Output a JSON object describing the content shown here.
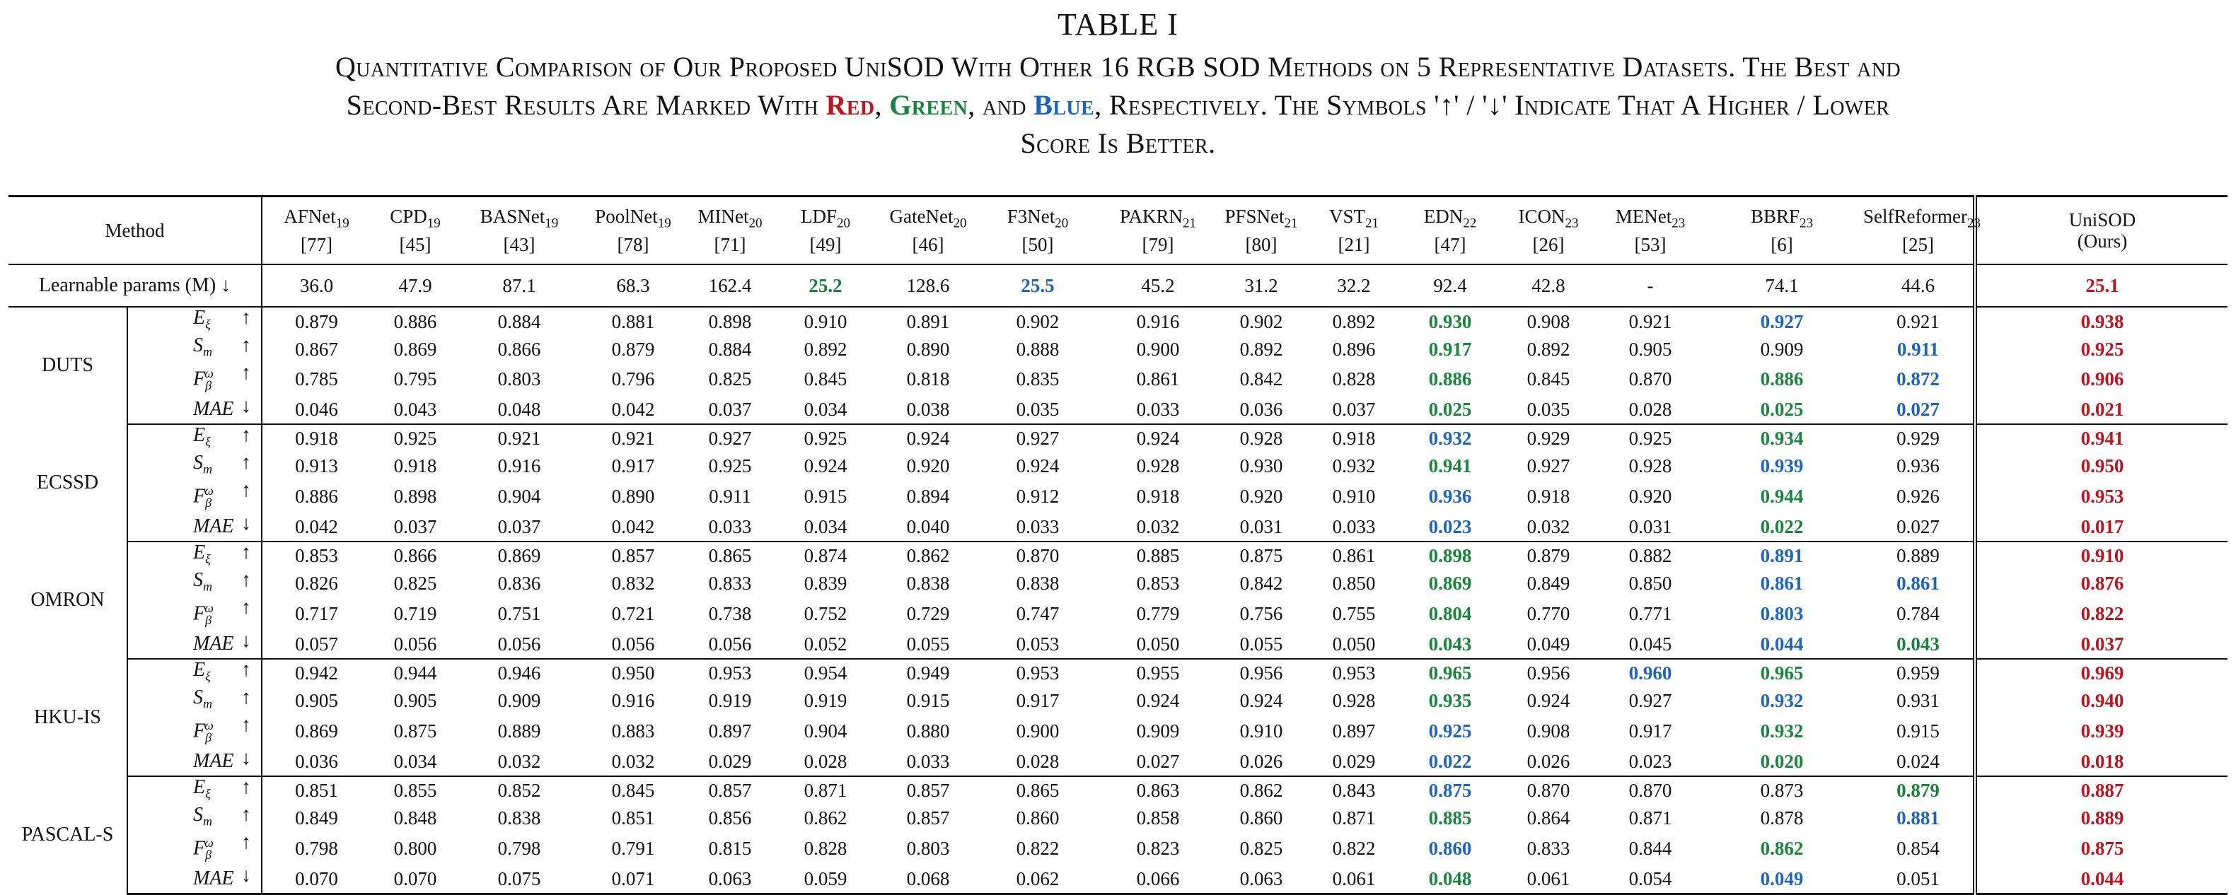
{
  "caption": {
    "label": "TABLE I",
    "line1": "Quantitative Comparison of Our Proposed UniSOD With Other 16 RGB SOD Methods on 5 Representative Datasets. The Best and",
    "line2_pre": "Second-Best Results Are Marked With ",
    "red_word": "Red",
    "comma1": ", ",
    "green_word": "Green",
    "and_word": ", and ",
    "blue_word": "Blue",
    "line2_post": ", Respectively. The Symbols '↑' / '↓' Indicate That A Higher / Lower",
    "line3": "Score Is Better."
  },
  "colors": {
    "red": "#c0141e",
    "green": "#18863a",
    "blue": "#1b64c0"
  },
  "header": {
    "method_label": "Method",
    "methods": [
      {
        "name": "AFNet",
        "year": "19",
        "ref": "[77]"
      },
      {
        "name": "CPD",
        "year": "19",
        "ref": "[45]"
      },
      {
        "name": "BASNet",
        "year": "19",
        "ref": "[43]"
      },
      {
        "name": "PoolNet",
        "year": "19",
        "ref": "[78]"
      },
      {
        "name": "MINet",
        "year": "20",
        "ref": "[71]"
      },
      {
        "name": "LDF",
        "year": "20",
        "ref": "[49]"
      },
      {
        "name": "GateNet",
        "year": "20",
        "ref": "[46]"
      },
      {
        "name": "F3Net",
        "year": "20",
        "ref": "[50]"
      },
      {
        "name": "PAKRN",
        "year": "21",
        "ref": "[79]"
      },
      {
        "name": "PFSNet",
        "year": "21",
        "ref": "[80]"
      },
      {
        "name": "VST",
        "year": "21",
        "ref": "[21]"
      },
      {
        "name": "EDN",
        "year": "22",
        "ref": "[47]"
      },
      {
        "name": "ICON",
        "year": "23",
        "ref": "[26]"
      },
      {
        "name": "MENet",
        "year": "23",
        "ref": "[53]"
      },
      {
        "name": "BBRF",
        "year": "23",
        "ref": "[6]"
      },
      {
        "name": "SelfReformer",
        "year": "23",
        "ref": "[25]"
      },
      {
        "name": "UniSOD",
        "year": "",
        "ref": "(Ours)"
      }
    ]
  },
  "params_row": {
    "label": "Learnable params (M) ↓",
    "values": [
      "36.0",
      "47.9",
      "87.1",
      "68.3",
      "162.4",
      "25.2",
      "128.6",
      "25.5",
      "45.2",
      "31.2",
      "32.2",
      "92.4",
      "42.8",
      "-",
      "74.1",
      "44.6",
      "25.1"
    ],
    "colors": [
      "",
      "",
      "",
      "",
      "",
      "g",
      "",
      "b",
      "",
      "",
      "",
      "",
      "",
      "",
      "",
      "",
      "r"
    ]
  },
  "datasets": [
    {
      "name": "DUTS",
      "rows": [
        {
          "metric": "E",
          "msub": "ξ",
          "msup": "",
          "arrow": "↑",
          "values": [
            "0.879",
            "0.886",
            "0.884",
            "0.881",
            "0.898",
            "0.910",
            "0.891",
            "0.902",
            "0.916",
            "0.902",
            "0.892",
            "0.930",
            "0.908",
            "0.921",
            "0.927",
            "0.921",
            "0.938"
          ],
          "colors": [
            "",
            "",
            "",
            "",
            "",
            "",
            "",
            "",
            "",
            "",
            "",
            "g",
            "",
            "",
            "b",
            "",
            "r"
          ]
        },
        {
          "metric": "S",
          "msub": "m",
          "msup": "",
          "arrow": "↑",
          "values": [
            "0.867",
            "0.869",
            "0.866",
            "0.879",
            "0.884",
            "0.892",
            "0.890",
            "0.888",
            "0.900",
            "0.892",
            "0.896",
            "0.917",
            "0.892",
            "0.905",
            "0.909",
            "0.911",
            "0.925"
          ],
          "colors": [
            "",
            "",
            "",
            "",
            "",
            "",
            "",
            "",
            "",
            "",
            "",
            "g",
            "",
            "",
            "",
            "b",
            "r"
          ]
        },
        {
          "metric": "F",
          "msub": "β",
          "msup": "ω",
          "arrow": "↑",
          "values": [
            "0.785",
            "0.795",
            "0.803",
            "0.796",
            "0.825",
            "0.845",
            "0.818",
            "0.835",
            "0.861",
            "0.842",
            "0.828",
            "0.886",
            "0.845",
            "0.870",
            "0.886",
            "0.872",
            "0.906"
          ],
          "colors": [
            "",
            "",
            "",
            "",
            "",
            "",
            "",
            "",
            "",
            "",
            "",
            "g",
            "",
            "",
            "g",
            "b",
            "r"
          ]
        },
        {
          "metric": "MAE",
          "msub": "",
          "msup": "",
          "arrow": "↓",
          "values": [
            "0.046",
            "0.043",
            "0.048",
            "0.042",
            "0.037",
            "0.034",
            "0.038",
            "0.035",
            "0.033",
            "0.036",
            "0.037",
            "0.025",
            "0.035",
            "0.028",
            "0.025",
            "0.027",
            "0.021"
          ],
          "colors": [
            "",
            "",
            "",
            "",
            "",
            "",
            "",
            "",
            "",
            "",
            "",
            "g",
            "",
            "",
            "g",
            "b",
            "r"
          ]
        }
      ]
    },
    {
      "name": "ECSSD",
      "rows": [
        {
          "metric": "E",
          "msub": "ξ",
          "msup": "",
          "arrow": "↑",
          "values": [
            "0.918",
            "0.925",
            "0.921",
            "0.921",
            "0.927",
            "0.925",
            "0.924",
            "0.927",
            "0.924",
            "0.928",
            "0.918",
            "0.932",
            "0.929",
            "0.925",
            "0.934",
            "0.929",
            "0.941"
          ],
          "colors": [
            "",
            "",
            "",
            "",
            "",
            "",
            "",
            "",
            "",
            "",
            "",
            "b",
            "",
            "",
            "g",
            "",
            "r"
          ]
        },
        {
          "metric": "S",
          "msub": "m",
          "msup": "",
          "arrow": "↑",
          "values": [
            "0.913",
            "0.918",
            "0.916",
            "0.917",
            "0.925",
            "0.924",
            "0.920",
            "0.924",
            "0.928",
            "0.930",
            "0.932",
            "0.941",
            "0.927",
            "0.928",
            "0.939",
            "0.936",
            "0.950"
          ],
          "colors": [
            "",
            "",
            "",
            "",
            "",
            "",
            "",
            "",
            "",
            "",
            "",
            "g",
            "",
            "",
            "b",
            "",
            "r"
          ]
        },
        {
          "metric": "F",
          "msub": "β",
          "msup": "ω",
          "arrow": "↑",
          "values": [
            "0.886",
            "0.898",
            "0.904",
            "0.890",
            "0.911",
            "0.915",
            "0.894",
            "0.912",
            "0.918",
            "0.920",
            "0.910",
            "0.936",
            "0.918",
            "0.920",
            "0.944",
            "0.926",
            "0.953"
          ],
          "colors": [
            "",
            "",
            "",
            "",
            "",
            "",
            "",
            "",
            "",
            "",
            "",
            "b",
            "",
            "",
            "g",
            "",
            "r"
          ]
        },
        {
          "metric": "MAE",
          "msub": "",
          "msup": "",
          "arrow": "↓",
          "values": [
            "0.042",
            "0.037",
            "0.037",
            "0.042",
            "0.033",
            "0.034",
            "0.040",
            "0.033",
            "0.032",
            "0.031",
            "0.033",
            "0.023",
            "0.032",
            "0.031",
            "0.022",
            "0.027",
            "0.017"
          ],
          "colors": [
            "",
            "",
            "",
            "",
            "",
            "",
            "",
            "",
            "",
            "",
            "",
            "b",
            "",
            "",
            "g",
            "",
            "r"
          ]
        }
      ]
    },
    {
      "name": "OMRON",
      "rows": [
        {
          "metric": "E",
          "msub": "ξ",
          "msup": "",
          "arrow": "↑",
          "values": [
            "0.853",
            "0.866",
            "0.869",
            "0.857",
            "0.865",
            "0.874",
            "0.862",
            "0.870",
            "0.885",
            "0.875",
            "0.861",
            "0.898",
            "0.879",
            "0.882",
            "0.891",
            "0.889",
            "0.910"
          ],
          "colors": [
            "",
            "",
            "",
            "",
            "",
            "",
            "",
            "",
            "",
            "",
            "",
            "g",
            "",
            "",
            "b",
            "",
            "r"
          ]
        },
        {
          "metric": "S",
          "msub": "m",
          "msup": "",
          "arrow": "↑",
          "values": [
            "0.826",
            "0.825",
            "0.836",
            "0.832",
            "0.833",
            "0.839",
            "0.838",
            "0.838",
            "0.853",
            "0.842",
            "0.850",
            "0.869",
            "0.849",
            "0.850",
            "0.861",
            "0.861",
            "0.876"
          ],
          "colors": [
            "",
            "",
            "",
            "",
            "",
            "",
            "",
            "",
            "",
            "",
            "",
            "g",
            "",
            "",
            "b",
            "b",
            "r"
          ]
        },
        {
          "metric": "F",
          "msub": "β",
          "msup": "ω",
          "arrow": "↑",
          "values": [
            "0.717",
            "0.719",
            "0.751",
            "0.721",
            "0.738",
            "0.752",
            "0.729",
            "0.747",
            "0.779",
            "0.756",
            "0.755",
            "0.804",
            "0.770",
            "0.771",
            "0.803",
            "0.784",
            "0.822"
          ],
          "colors": [
            "",
            "",
            "",
            "",
            "",
            "",
            "",
            "",
            "",
            "",
            "",
            "g",
            "",
            "",
            "b",
            "",
            "r"
          ]
        },
        {
          "metric": "MAE",
          "msub": "",
          "msup": "",
          "arrow": "↓",
          "values": [
            "0.057",
            "0.056",
            "0.056",
            "0.056",
            "0.056",
            "0.052",
            "0.055",
            "0.053",
            "0.050",
            "0.055",
            "0.050",
            "0.043",
            "0.049",
            "0.045",
            "0.044",
            "0.043",
            "0.037"
          ],
          "colors": [
            "",
            "",
            "",
            "",
            "",
            "",
            "",
            "",
            "",
            "",
            "",
            "g",
            "",
            "",
            "b",
            "g",
            "r"
          ]
        }
      ]
    },
    {
      "name": "HKU-IS",
      "rows": [
        {
          "metric": "E",
          "msub": "ξ",
          "msup": "",
          "arrow": "↑",
          "values": [
            "0.942",
            "0.944",
            "0.946",
            "0.950",
            "0.953",
            "0.954",
            "0.949",
            "0.953",
            "0.955",
            "0.956",
            "0.953",
            "0.965",
            "0.956",
            "0.960",
            "0.965",
            "0.959",
            "0.969"
          ],
          "colors": [
            "",
            "",
            "",
            "",
            "",
            "",
            "",
            "",
            "",
            "",
            "",
            "g",
            "",
            "b",
            "g",
            "",
            "r"
          ]
        },
        {
          "metric": "S",
          "msub": "m",
          "msup": "",
          "arrow": "↑",
          "values": [
            "0.905",
            "0.905",
            "0.909",
            "0.916",
            "0.919",
            "0.919",
            "0.915",
            "0.917",
            "0.924",
            "0.924",
            "0.928",
            "0.935",
            "0.924",
            "0.927",
            "0.932",
            "0.931",
            "0.940"
          ],
          "colors": [
            "",
            "",
            "",
            "",
            "",
            "",
            "",
            "",
            "",
            "",
            "",
            "g",
            "",
            "",
            "b",
            "",
            "r"
          ]
        },
        {
          "metric": "F",
          "msub": "β",
          "msup": "ω",
          "arrow": "↑",
          "values": [
            "0.869",
            "0.875",
            "0.889",
            "0.883",
            "0.897",
            "0.904",
            "0.880",
            "0.900",
            "0.909",
            "0.910",
            "0.897",
            "0.925",
            "0.908",
            "0.917",
            "0.932",
            "0.915",
            "0.939"
          ],
          "colors": [
            "",
            "",
            "",
            "",
            "",
            "",
            "",
            "",
            "",
            "",
            "",
            "b",
            "",
            "",
            "g",
            "",
            "r"
          ]
        },
        {
          "metric": "MAE",
          "msub": "",
          "msup": "",
          "arrow": "↓",
          "values": [
            "0.036",
            "0.034",
            "0.032",
            "0.032",
            "0.029",
            "0.028",
            "0.033",
            "0.028",
            "0.027",
            "0.026",
            "0.029",
            "0.022",
            "0.026",
            "0.023",
            "0.020",
            "0.024",
            "0.018"
          ],
          "colors": [
            "",
            "",
            "",
            "",
            "",
            "",
            "",
            "",
            "",
            "",
            "",
            "b",
            "",
            "",
            "g",
            "",
            "r"
          ]
        }
      ]
    },
    {
      "name": "PASCAL-S",
      "rows": [
        {
          "metric": "E",
          "msub": "ξ",
          "msup": "",
          "arrow": "↑",
          "values": [
            "0.851",
            "0.855",
            "0.852",
            "0.845",
            "0.857",
            "0.871",
            "0.857",
            "0.865",
            "0.863",
            "0.862",
            "0.843",
            "0.875",
            "0.870",
            "0.870",
            "0.873",
            "0.879",
            "0.887"
          ],
          "colors": [
            "",
            "",
            "",
            "",
            "",
            "",
            "",
            "",
            "",
            "",
            "",
            "b",
            "",
            "",
            "",
            "g",
            "r"
          ]
        },
        {
          "metric": "S",
          "msub": "m",
          "msup": "",
          "arrow": "↑",
          "values": [
            "0.849",
            "0.848",
            "0.838",
            "0.851",
            "0.856",
            "0.862",
            "0.857",
            "0.860",
            "0.858",
            "0.860",
            "0.871",
            "0.885",
            "0.864",
            "0.871",
            "0.878",
            "0.881",
            "0.889"
          ],
          "colors": [
            "",
            "",
            "",
            "",
            "",
            "",
            "",
            "",
            "",
            "",
            "",
            "g",
            "",
            "",
            "",
            "b",
            "r"
          ]
        },
        {
          "metric": "F",
          "msub": "β",
          "msup": "ω",
          "arrow": "↑",
          "values": [
            "0.798",
            "0.800",
            "0.798",
            "0.791",
            "0.815",
            "0.828",
            "0.803",
            "0.822",
            "0.823",
            "0.825",
            "0.822",
            "0.860",
            "0.833",
            "0.844",
            "0.862",
            "0.854",
            "0.875"
          ],
          "colors": [
            "",
            "",
            "",
            "",
            "",
            "",
            "",
            "",
            "",
            "",
            "",
            "b",
            "",
            "",
            "g",
            "",
            "r"
          ]
        },
        {
          "metric": "MAE",
          "msub": "",
          "msup": "",
          "arrow": "↓",
          "values": [
            "0.070",
            "0.070",
            "0.075",
            "0.071",
            "0.063",
            "0.059",
            "0.068",
            "0.062",
            "0.066",
            "0.063",
            "0.061",
            "0.048",
            "0.061",
            "0.054",
            "0.049",
            "0.051",
            "0.044"
          ],
          "colors": [
            "",
            "",
            "",
            "",
            "",
            "",
            "",
            "",
            "",
            "",
            "",
            "g",
            "",
            "",
            "b",
            "",
            "r"
          ]
        }
      ]
    }
  ]
}
